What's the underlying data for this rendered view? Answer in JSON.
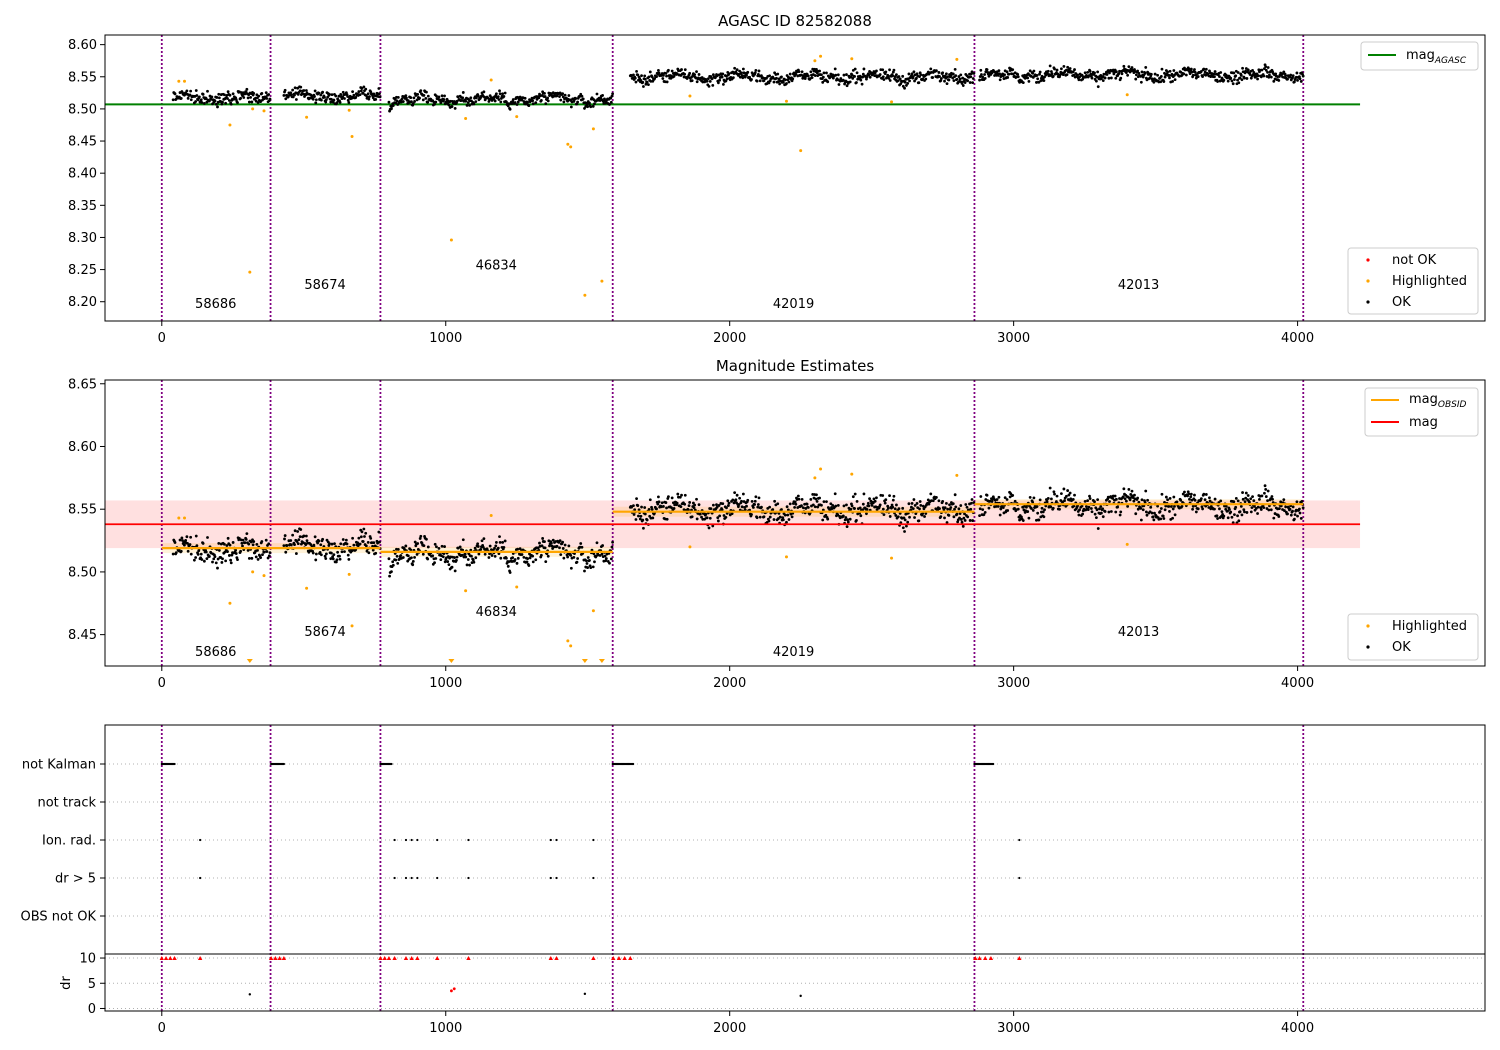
{
  "chart_data": [
    {
      "type": "scatter",
      "title": "AGASC ID 82582088",
      "xlim": [
        -200,
        4660
      ],
      "ylim": [
        8.17,
        8.615
      ],
      "yticks": [
        8.2,
        8.25,
        8.3,
        8.35,
        8.4,
        8.45,
        8.5,
        8.55,
        8.6
      ],
      "xticks": [
        0,
        1000,
        2000,
        3000,
        4000
      ],
      "obs_boundaries": [
        0,
        383,
        770,
        1588,
        2862,
        4020
      ],
      "obsids": [
        {
          "label": "58686",
          "x": 190,
          "y": 8.19
        },
        {
          "label": "58674",
          "x": 575,
          "y": 8.22
        },
        {
          "label": "46834",
          "x": 1178,
          "y": 8.25
        },
        {
          "label": "42019",
          "x": 2225,
          "y": 8.19
        },
        {
          "label": "42013",
          "x": 3440,
          "y": 8.22
        }
      ],
      "segments": [
        {
          "x0": 40,
          "x1": 383,
          "level": 8.518
        },
        {
          "x0": 430,
          "x1": 770,
          "level": 8.52
        },
        {
          "x0": 800,
          "x1": 1588,
          "level": 8.515
        },
        {
          "x0": 1650,
          "x1": 2862,
          "level": 8.55
        },
        {
          "x0": 2880,
          "x1": 4020,
          "level": 8.553
        }
      ],
      "hlines": [
        {
          "name": "mag_AGASC",
          "y": 8.507,
          "x0": -200,
          "x1": 4220,
          "color": "#008000"
        }
      ],
      "highlighted": [
        [
          60,
          8.543
        ],
        [
          80,
          8.543
        ],
        [
          240,
          8.475
        ],
        [
          310,
          8.246
        ],
        [
          320,
          8.5
        ],
        [
          360,
          8.497
        ],
        [
          510,
          8.487
        ],
        [
          660,
          8.498
        ],
        [
          670,
          8.457
        ],
        [
          1020,
          8.296
        ],
        [
          1070,
          8.485
        ],
        [
          1160,
          8.545
        ],
        [
          1250,
          8.488
        ],
        [
          1430,
          8.445
        ],
        [
          1440,
          8.441
        ],
        [
          1490,
          8.21
        ],
        [
          1520,
          8.469
        ],
        [
          1550,
          8.232
        ],
        [
          1860,
          8.52
        ],
        [
          2200,
          8.512
        ],
        [
          2250,
          8.435
        ],
        [
          2300,
          8.575
        ],
        [
          2320,
          8.582
        ],
        [
          2430,
          8.578
        ],
        [
          2570,
          8.511
        ],
        [
          2800,
          8.577
        ],
        [
          3400,
          8.522
        ]
      ],
      "legend": [
        "mag_AGASC",
        "not OK",
        "Highlighted",
        "OK"
      ],
      "colors": {
        "ok": "#000000",
        "highlighted": "#ffa500",
        "not_ok": "#ff0000",
        "agasc": "#008000",
        "obs_line": "#800080"
      }
    },
    {
      "type": "scatter",
      "title": "Magnitude Estimates",
      "xlim": [
        -200,
        4660
      ],
      "ylim": [
        8.425,
        8.653
      ],
      "yticks": [
        8.45,
        8.5,
        8.55,
        8.6,
        8.65
      ],
      "xticks": [
        0,
        1000,
        2000,
        3000,
        4000
      ],
      "obs_boundaries": [
        0,
        383,
        770,
        1588,
        2862,
        4020
      ],
      "obsids": [
        {
          "label": "58686",
          "x": 190,
          "y": 8.433
        },
        {
          "label": "58674",
          "x": 575,
          "y": 8.449
        },
        {
          "label": "46834",
          "x": 1178,
          "y": 8.465
        },
        {
          "label": "42019",
          "x": 2225,
          "y": 8.433
        },
        {
          "label": "42013",
          "x": 3440,
          "y": 8.449
        }
      ],
      "segments": [
        {
          "x0": 40,
          "x1": 383,
          "level": 8.518
        },
        {
          "x0": 430,
          "x1": 770,
          "level": 8.52
        },
        {
          "x0": 800,
          "x1": 1588,
          "level": 8.515
        },
        {
          "x0": 1650,
          "x1": 2862,
          "level": 8.55
        },
        {
          "x0": 2880,
          "x1": 4020,
          "level": 8.553
        }
      ],
      "mag_obsid": [
        {
          "x0": 0,
          "x1": 383,
          "y": 8.519
        },
        {
          "x0": 383,
          "x1": 770,
          "y": 8.519
        },
        {
          "x0": 770,
          "x1": 1588,
          "y": 8.516
        },
        {
          "x0": 1588,
          "x1": 2862,
          "y": 8.548
        },
        {
          "x0": 2862,
          "x1": 4020,
          "y": 8.554
        }
      ],
      "mag": {
        "y": 8.538,
        "band": [
          8.519,
          8.557
        ],
        "x0": -200,
        "x1": 4220
      },
      "highlighted": [
        [
          60,
          8.543
        ],
        [
          80,
          8.543
        ],
        [
          240,
          8.475
        ],
        [
          320,
          8.5
        ],
        [
          360,
          8.497
        ],
        [
          510,
          8.487
        ],
        [
          660,
          8.498
        ],
        [
          670,
          8.457
        ],
        [
          1070,
          8.485
        ],
        [
          1160,
          8.545
        ],
        [
          1250,
          8.488
        ],
        [
          1430,
          8.445
        ],
        [
          1440,
          8.441
        ],
        [
          1520,
          8.469
        ],
        [
          1860,
          8.52
        ],
        [
          2200,
          8.512
        ],
        [
          2300,
          8.575
        ],
        [
          2320,
          8.582
        ],
        [
          2430,
          8.578
        ],
        [
          2570,
          8.511
        ],
        [
          2800,
          8.577
        ],
        [
          3400,
          8.522
        ]
      ],
      "offscale_below": [
        310,
        1020,
        1490,
        1550
      ],
      "legend": [
        "mag_OBSID",
        "mag",
        "Highlighted",
        "OK"
      ],
      "colors": {
        "ok": "#000000",
        "highlighted": "#ffa500",
        "mag_obsid": "#ffa500",
        "mag": "#ff0000",
        "band": "#ff0000",
        "obs_line": "#800080"
      }
    },
    {
      "type": "scatter",
      "title": "",
      "xlim": [
        -200,
        4660
      ],
      "xticks": [
        0,
        1000,
        2000,
        3000,
        4000
      ],
      "obs_boundaries": [
        0,
        383,
        770,
        1588,
        2862,
        4020
      ],
      "flags": [
        "not Kalman",
        "not track",
        "Ion. rad.",
        "dr > 5",
        "OBS not OK"
      ],
      "not_kalman_ranges": [
        [
          0,
          45
        ],
        [
          385,
          430
        ],
        [
          770,
          810
        ],
        [
          1588,
          1660
        ],
        [
          2862,
          2930
        ]
      ],
      "ion_rad_points": [
        135,
        820,
        860,
        880,
        900,
        970,
        1080,
        1370,
        1390,
        1520,
        3020
      ],
      "dr5_points": [
        135,
        820,
        860,
        880,
        900,
        970,
        1080,
        1370,
        1390,
        1520,
        3020
      ],
      "dr": {
        "ylabel": "dr",
        "ylim": [
          -0.5,
          10.8
        ],
        "yticks": [
          0,
          5,
          10
        ],
        "segments": [
          [
            40,
            383
          ],
          [
            430,
            770
          ],
          [
            800,
            1588
          ],
          [
            1650,
            2862
          ],
          [
            2880,
            4020
          ]
        ],
        "capped_red_points": [
          0,
          15,
          30,
          45,
          135,
          385,
          400,
          415,
          430,
          770,
          785,
          800,
          820,
          860,
          880,
          900,
          970,
          1080,
          1370,
          1390,
          1520,
          1590,
          1610,
          1630,
          1650,
          2865,
          2880,
          2900,
          2920,
          3020
        ],
        "red_points": [
          [
            1020,
            3.5
          ],
          [
            1030,
            3.9
          ]
        ],
        "outliers": [
          [
            310,
            2.8
          ],
          [
            1490,
            2.9
          ],
          [
            2250,
            2.5
          ]
        ]
      }
    }
  ]
}
